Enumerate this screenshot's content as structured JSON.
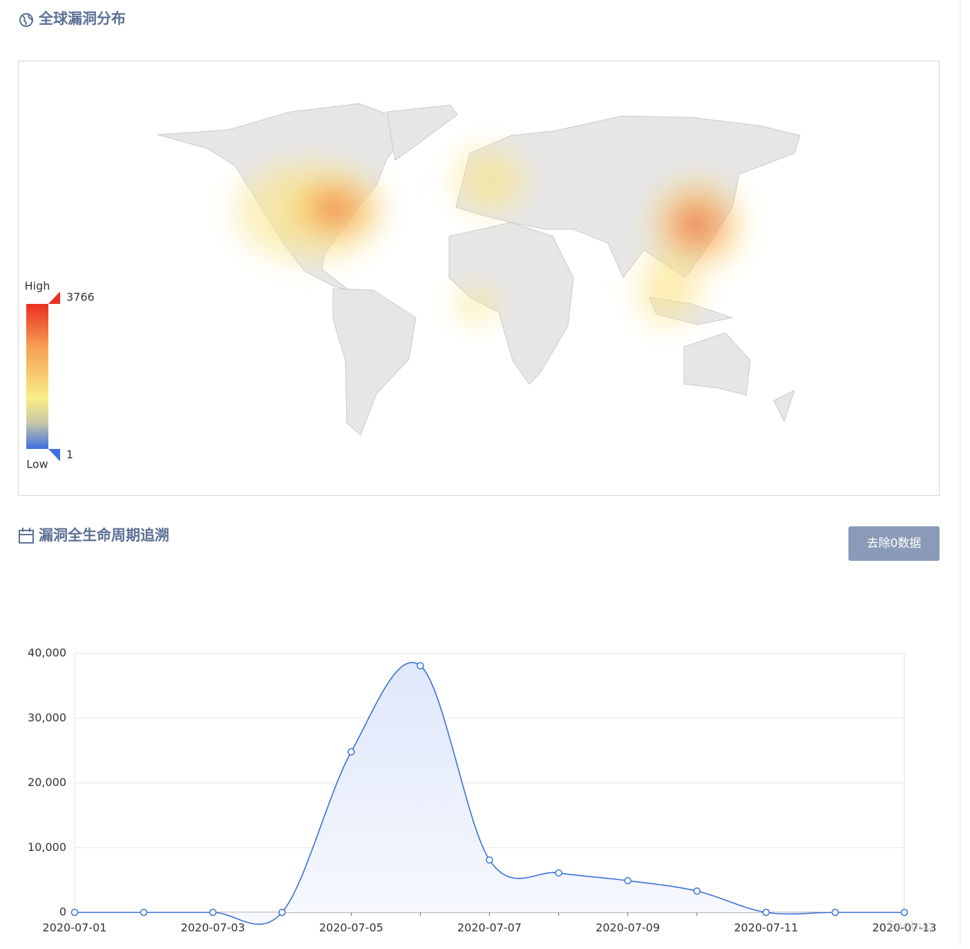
{
  "map_section": {
    "title": "全球漏洞分布",
    "visual_map": {
      "high_label": "High",
      "low_label": "Low",
      "max": 3766,
      "min": 1
    }
  },
  "lifecycle_section": {
    "title": "漏洞全生命周期追溯",
    "button": "去除0数据"
  },
  "watermark": "Seebug",
  "chart_data": {
    "type": "line",
    "categories": [
      "2020-07-01",
      null,
      "2020-07-03",
      null,
      "2020-07-05",
      null,
      "2020-07-07",
      null,
      "2020-07-09",
      null,
      "2020-07-11",
      null,
      "2020-07-13"
    ],
    "values": [
      0,
      0,
      0,
      0,
      24800,
      38100,
      8100,
      6100,
      4900,
      3300,
      0,
      0,
      0
    ],
    "color": "#3a6fd8",
    "ylim": [
      0,
      40000
    ],
    "yticks": [
      0,
      {
        "value": 10000,
        "label": "10,000"
      },
      {
        "value": 20000,
        "label": "20,000"
      },
      {
        "value": 30000,
        "label": "30,000"
      },
      {
        "value": 40000,
        "label": "40,000"
      }
    ],
    "grid": true
  }
}
